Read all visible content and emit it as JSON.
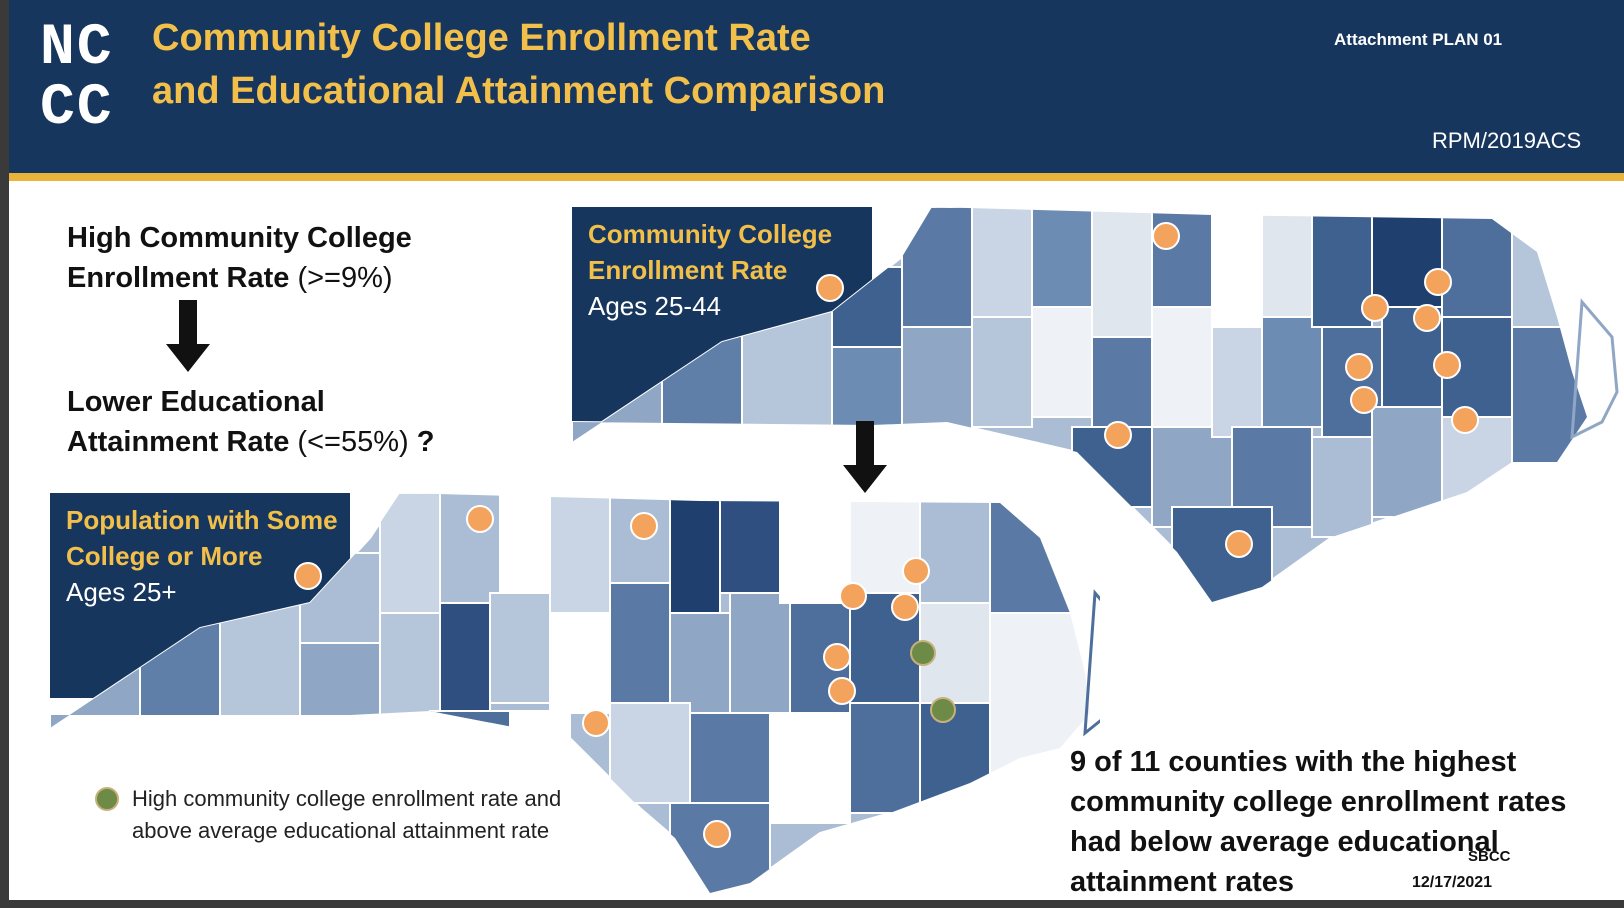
{
  "header": {
    "logo_line1": "NC",
    "logo_line2": "CC",
    "title_line1": "Community College Enrollment Rate",
    "title_line2": "and Educational Attainment Comparison",
    "attachment": "Attachment PLAN 01",
    "source": "RPM/2019ACS"
  },
  "left_text": {
    "high_bold_line1": "High Community College",
    "high_bold_line2": "Enrollment Rate",
    "high_threshold": "(>=9%)",
    "lower_bold_line1": "Lower Educational",
    "lower_bold_line2": "Attainment Rate",
    "lower_threshold": "(<=55%)",
    "question_mark": "?"
  },
  "enrollment_map": {
    "label_line1": "Community College",
    "label_line2": "Enrollment Rate",
    "label_line3": "Ages 25-44",
    "high_enrollment_markers": 11
  },
  "attainment_map": {
    "label_line1": "Population with Some",
    "label_line2": "College or More",
    "label_line3": "Ages 25+",
    "orange_markers": 9,
    "green_markers": 2
  },
  "legend": {
    "marker_color": "#6d8b47",
    "text": "High community college enrollment rate and above average educational attainment rate"
  },
  "conclusion": "9 of 11 counties with the highest community college enrollment rates had below average educational attainment rates",
  "footer": {
    "org": "SBCC",
    "date": "12/17/2021"
  },
  "colors": {
    "header_navy": "#17365d",
    "title_gold": "#f2c04a",
    "marker_orange": "#f3a35c",
    "marker_green": "#6d8b47"
  }
}
